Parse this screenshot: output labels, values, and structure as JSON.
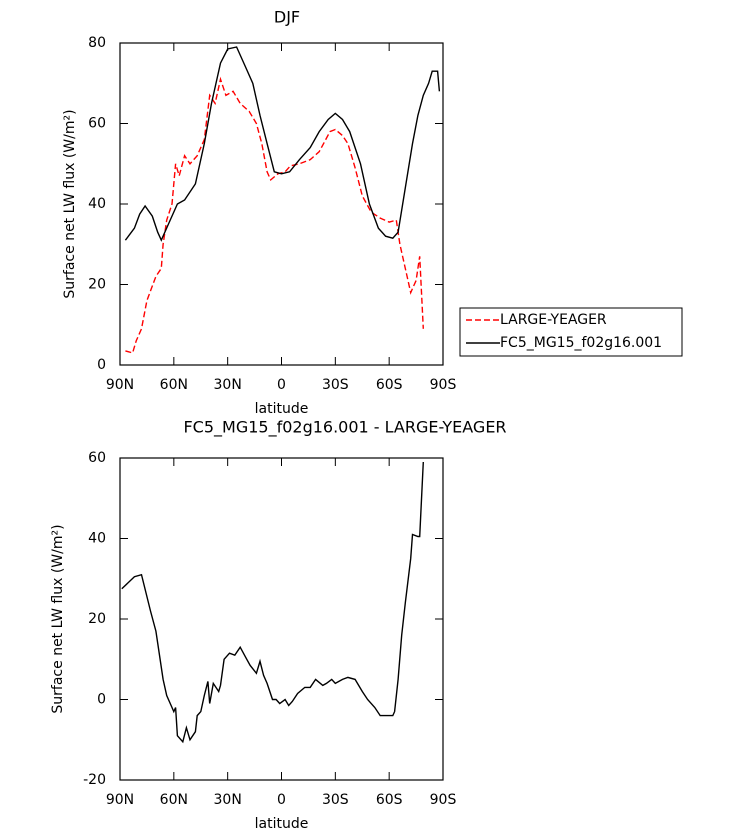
{
  "chart_data": [
    {
      "type": "line",
      "title": "DJF",
      "xlabel": "latitude",
      "ylabel": "Surface net LW flux (W/m²)",
      "xlim": [
        90,
        -90
      ],
      "ylim": [
        0,
        80
      ],
      "xticks": [
        {
          "value": 90,
          "label": "90N"
        },
        {
          "value": 60,
          "label": "60N"
        },
        {
          "value": 30,
          "label": "30N"
        },
        0,
        {
          "value": -30,
          "label": "30S"
        },
        {
          "value": -60,
          "label": "60S"
        },
        {
          "value": -90,
          "label": "90S"
        }
      ],
      "yticks": [
        0,
        20,
        40,
        60,
        80
      ],
      "legend": "right",
      "series": [
        {
          "name": "LARGE-YEAGER",
          "color": "#ff0000",
          "style": "dashed",
          "x": [
            87,
            83,
            81,
            78,
            75,
            70,
            67,
            66,
            64,
            61,
            59,
            57,
            54,
            51,
            47,
            43,
            40,
            37,
            34,
            31,
            27,
            23,
            18,
            14,
            11,
            8,
            6,
            2,
            -2,
            -5,
            -10,
            -16,
            -21,
            -27,
            -30,
            -34,
            -37,
            -41,
            -45,
            -50,
            -55,
            -60,
            -64,
            -66,
            -69,
            -72,
            -75,
            -77,
            -79
          ],
          "values": [
            3.5,
            3,
            6,
            9,
            16,
            22,
            24,
            30,
            36,
            40,
            50,
            47,
            52,
            50,
            52,
            56,
            67,
            65,
            71,
            67,
            68,
            65,
            63,
            60,
            55,
            48,
            46,
            47.5,
            48,
            49.5,
            50,
            51,
            53,
            58,
            58.5,
            57,
            55,
            49,
            42,
            38,
            36.5,
            35.5,
            36,
            30,
            24,
            18,
            21,
            27,
            9
          ]
        },
        {
          "name": "FC5_MG15_f02g16.001",
          "color": "#000000",
          "style": "solid",
          "x": [
            87,
            82,
            79,
            76,
            72,
            69,
            67,
            62,
            58,
            54,
            48,
            43,
            39,
            34,
            30,
            25,
            20,
            16,
            12,
            8,
            4,
            0,
            -4.5,
            -10,
            -16,
            -21,
            -26,
            -30,
            -34,
            -38,
            -44,
            -49,
            -54,
            -58,
            -62,
            -65,
            -69,
            -73,
            -76,
            -79,
            -82,
            -84,
            -87,
            -88
          ],
          "values": [
            31,
            34,
            37.5,
            39.5,
            37,
            33,
            31,
            36,
            40,
            41,
            45,
            55,
            65,
            75,
            78.5,
            79,
            74,
            70,
            62,
            55,
            48,
            47.5,
            48,
            51,
            54,
            58,
            61,
            62.5,
            61,
            58,
            50,
            40,
            34,
            32,
            31.5,
            33,
            44,
            55,
            62,
            67,
            70,
            73,
            73,
            68
          ]
        }
      ]
    },
    {
      "type": "line",
      "title": "FC5_MG15_f02g16.001 - LARGE-YEAGER",
      "xlabel": "latitude",
      "ylabel": "Surface net LW flux (W/m²)",
      "xlim": [
        90,
        -90
      ],
      "ylim": [
        -20,
        60
      ],
      "xticks": [
        {
          "value": 90,
          "label": "90N"
        },
        {
          "value": 60,
          "label": "60N"
        },
        {
          "value": 30,
          "label": "30N"
        },
        0,
        {
          "value": -30,
          "label": "30S"
        },
        {
          "value": -60,
          "label": "60S"
        },
        {
          "value": -90,
          "label": "90S"
        }
      ],
      "yticks": [
        -20,
        0,
        20,
        40,
        60
      ],
      "series": [
        {
          "color": "#000000",
          "style": "solid",
          "x": [
            89,
            82,
            78,
            73,
            70,
            69,
            66,
            64,
            61,
            60,
            59,
            58,
            55,
            53,
            51,
            48,
            47,
            45,
            43,
            41,
            40,
            38,
            35,
            34,
            32,
            29,
            26,
            23,
            20,
            17.5,
            14,
            12,
            10,
            8,
            5,
            3,
            1,
            -2,
            -4,
            -6,
            -9,
            -13,
            -16,
            -19,
            -23,
            -25,
            -28,
            -30,
            -34,
            -37,
            -41,
            -45,
            -48,
            -52,
            -55,
            -60,
            -62,
            -63,
            -65,
            -67,
            -69,
            -72,
            -73,
            -76,
            -77,
            -79
          ],
          "values": [
            27.5,
            30.5,
            31,
            22,
            17,
            14,
            5,
            1,
            -2,
            -3,
            -2,
            -9,
            -10.5,
            -7,
            -10,
            -8,
            -4,
            -3,
            1,
            4.5,
            -1,
            4,
            2,
            3.5,
            10,
            11.5,
            11,
            13,
            10.5,
            8.5,
            6.5,
            9.5,
            6,
            4,
            0,
            0,
            -1,
            0,
            -1.5,
            -0.5,
            1.5,
            3,
            3,
            5,
            3.5,
            4,
            5,
            4,
            5,
            5.5,
            5,
            2,
            0,
            -2,
            -4,
            -4,
            -4,
            -3,
            5,
            16,
            24,
            35,
            41,
            40.5,
            40.5,
            59
          ]
        }
      ]
    }
  ]
}
